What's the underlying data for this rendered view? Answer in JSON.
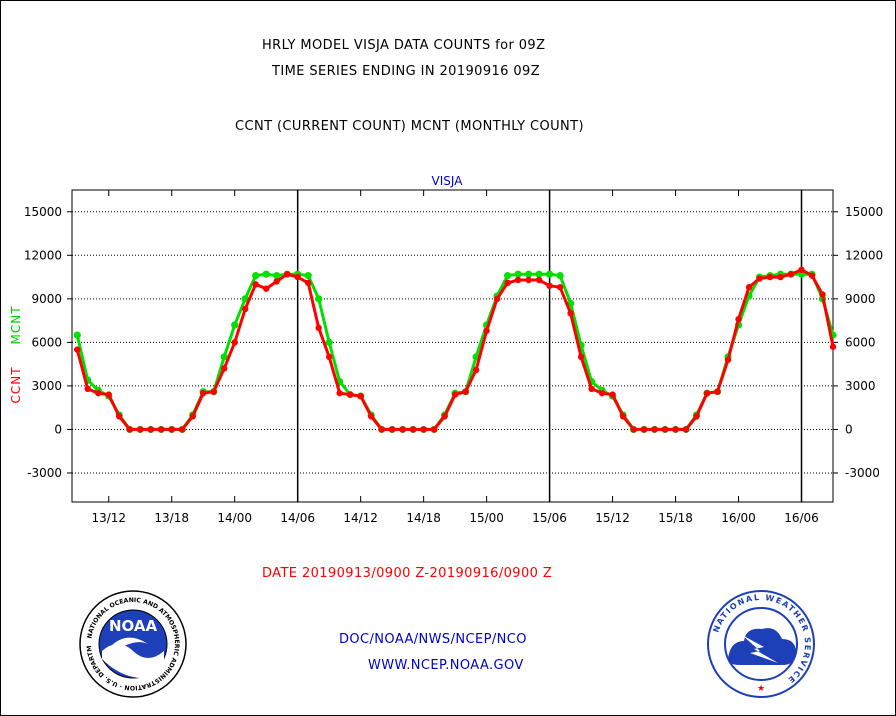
{
  "header": {
    "title_line1": "HRLY MODEL VISJA DATA COUNTS for 09Z",
    "title_line2": "TIME SERIES ENDING IN 20190916 09Z",
    "subtitle": "CCNT (CURRENT COUNT) MCNT (MONTHLY COUNT)"
  },
  "footer": {
    "date_range": "DATE 20190913/0900 Z-20190916/0900 Z",
    "org_line": "DOC/NOAA/NWS/NCEP/NCO",
    "url_line": "WWW.NCEP.NOAA.GOV"
  },
  "logos": {
    "left": {
      "name": "NOAA",
      "ring_text": "NATIONAL OCEANIC AND ATMOSPHERIC ADMINISTRATION · U.S. DEPARTMENT OF COMMERCE"
    },
    "right": {
      "ring_text": "NATIONAL WEATHER SERVICE"
    }
  },
  "colors": {
    "ccnt": "#ff0000",
    "mcnt": "#00e000",
    "station_label": "#0000cc",
    "footer_blue": "#0000cc",
    "footer_red": "#ff0000"
  },
  "chart_data": {
    "type": "line",
    "title": "VISJA",
    "ylabel_series": [
      "CCNT",
      "MCNT"
    ],
    "ylim": [
      -5000,
      16500
    ],
    "yticks": [
      15000,
      12000,
      9000,
      6000,
      3000,
      0,
      -3000
    ],
    "ytick_labels": [
      "15000",
      "12000",
      "9000",
      "6000",
      "3000",
      "0",
      "-3000"
    ],
    "xlim": [
      -0.5,
      72
    ],
    "xticks": [
      3,
      9,
      15,
      21,
      27,
      33,
      39,
      45,
      51,
      57,
      63,
      69
    ],
    "xtick_labels": [
      "13/12",
      "13/18",
      "14/00",
      "14/06",
      "14/12",
      "14/18",
      "15/00",
      "15/06",
      "15/12",
      "15/18",
      "16/00",
      "16/06"
    ],
    "day_boundaries": [
      21,
      45,
      69
    ],
    "grid": true,
    "series": [
      {
        "name": "CCNT",
        "color": "#ff0000",
        "values": [
          5500,
          2800,
          2500,
          2400,
          900,
          0,
          0,
          0,
          0,
          0,
          0,
          900,
          2500,
          2600,
          4200,
          6000,
          8300,
          10000,
          9700,
          10200,
          10700,
          10500,
          10100,
          7000,
          5000,
          2500,
          2400,
          2300,
          900,
          0,
          0,
          0,
          0,
          0,
          0,
          900,
          2400,
          2600,
          4100,
          6800,
          9000,
          10100,
          10300,
          10300,
          10300,
          9900,
          9800,
          8000,
          5000,
          2800,
          2500,
          2400,
          900,
          0,
          0,
          0,
          0,
          0,
          0,
          900,
          2500,
          2600,
          4800,
          7600,
          9800,
          10400,
          10500,
          10500,
          10700,
          11000,
          10600,
          9300,
          5700
        ]
      },
      {
        "name": "MCNT",
        "color": "#00e000",
        "values": [
          6500,
          3400,
          2700,
          2300,
          1000,
          0,
          0,
          0,
          0,
          0,
          0,
          1000,
          2600,
          2600,
          5000,
          7200,
          9000,
          10600,
          10700,
          10600,
          10700,
          10700,
          10600,
          9000,
          6000,
          3300,
          2400,
          2300,
          1000,
          0,
          0,
          0,
          0,
          0,
          0,
          1000,
          2500,
          2600,
          5000,
          7200,
          9200,
          10600,
          10700,
          10700,
          10700,
          10700,
          10600,
          8700,
          5800,
          3300,
          2700,
          2300,
          1000,
          0,
          0,
          0,
          0,
          0,
          0,
          1000,
          2500,
          2600,
          5000,
          7200,
          9200,
          10500,
          10600,
          10700,
          10700,
          10700,
          10700,
          9000,
          6500
        ]
      }
    ]
  }
}
